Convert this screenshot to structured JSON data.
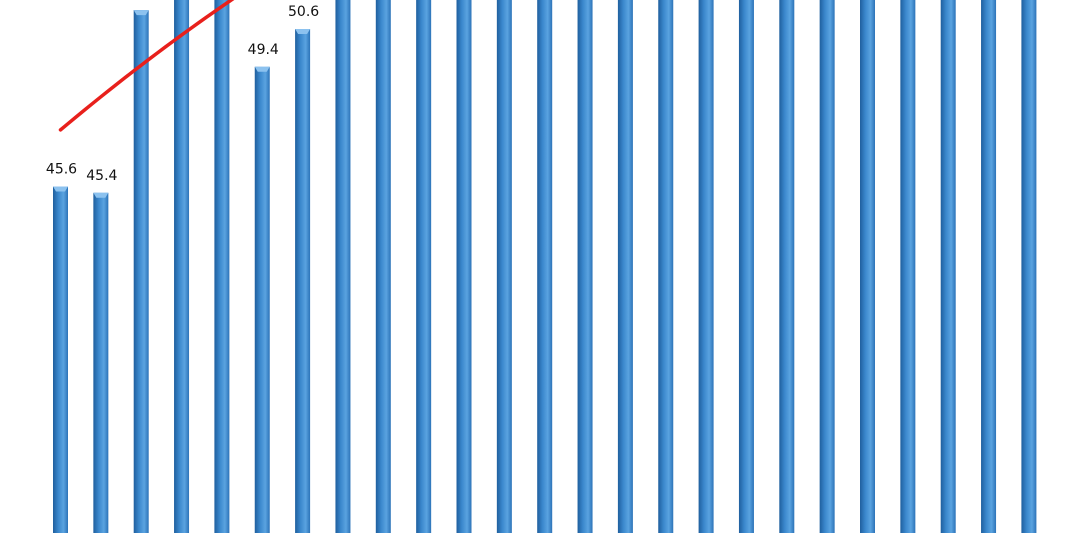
{
  "chart_data": {
    "type": "bar",
    "values": [
      45.6,
      45.4,
      51.2,
      52.4,
      56.5,
      49.4,
      50.6,
      55.6,
      56.5,
      58.3,
      52.9,
      55.6,
      55.3,
      56.5,
      56.4,
      58.6,
      58.9,
      58.4,
      57.3,
      62.0,
      62.8,
      57.1,
      58.8,
      59.4,
      60.7
    ],
    "value_labels": [
      "45.6",
      "45.4",
      "51.2",
      "52.4",
      "56.5",
      "49.4",
      "50.6",
      "55.6",
      "56.5",
      "58.3",
      "52.9",
      "55.6",
      "55.3",
      "56.5",
      "56.4",
      "58.6",
      "58.9",
      "58.4",
      "57.3",
      "62.0",
      "62.8",
      "57.1",
      "58.8",
      "59.4",
      "60.7"
    ],
    "trendline": {
      "type": "polynomial",
      "color": "#e8201c"
    },
    "grid": false,
    "legend": "none",
    "colors": {
      "bar": "#3a87cc",
      "bar_light": "#8cc2ef",
      "bar_dark": "#1f5f9e",
      "trend": "#e8201c",
      "label": "#111111"
    }
  }
}
